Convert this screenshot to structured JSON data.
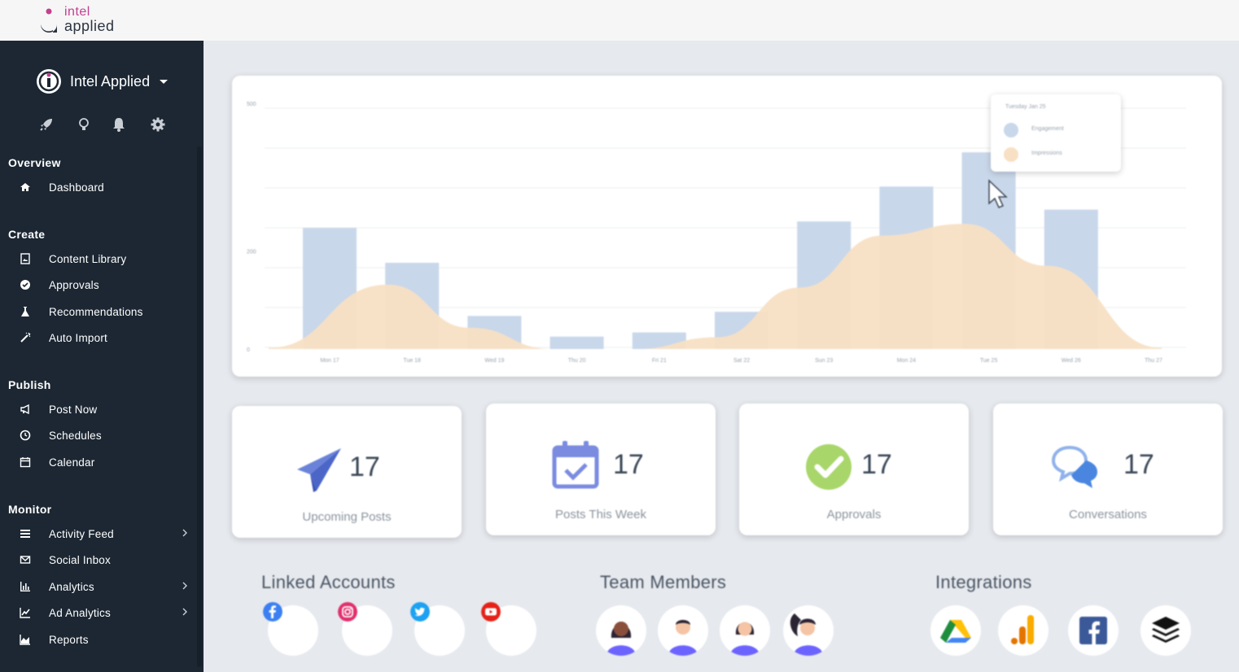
{
  "topbar": {
    "logo_line1": "intel",
    "logo_line2": "applied"
  },
  "sidebar": {
    "brand_name": "Intel Applied",
    "quick_icons": [
      "rocket-icon",
      "lightbulb-icon",
      "bell-icon",
      "gear-icon"
    ],
    "sections": [
      {
        "title": "Overview",
        "items": [
          {
            "label": "Dashboard",
            "icon": "home-icon"
          }
        ]
      },
      {
        "title": "Create",
        "items": [
          {
            "label": "Content Library",
            "icon": "image-file-icon"
          },
          {
            "label": "Approvals",
            "icon": "check-circle-icon"
          },
          {
            "label": "Recommendations",
            "icon": "flask-icon"
          },
          {
            "label": "Auto Import",
            "icon": "magic-wand-icon"
          }
        ]
      },
      {
        "title": "Publish",
        "items": [
          {
            "label": "Post Now",
            "icon": "megaphone-icon"
          },
          {
            "label": "Schedules",
            "icon": "clock-icon"
          },
          {
            "label": "Calendar",
            "icon": "calendar-icon"
          }
        ]
      },
      {
        "title": "Monitor",
        "items": [
          {
            "label": "Activity Feed",
            "icon": "list-icon",
            "chevron": true
          },
          {
            "label": "Social Inbox",
            "icon": "envelope-icon"
          },
          {
            "label": "Analytics",
            "icon": "bar-chart-icon",
            "chevron": true
          },
          {
            "label": "Ad Analytics",
            "icon": "line-chart-icon",
            "chevron": true
          },
          {
            "label": "Reports",
            "icon": "area-chart-icon"
          }
        ]
      }
    ]
  },
  "chart_data": {
    "type": "bar",
    "categories": [
      "Mon 17",
      "Tue 18",
      "Wed 19",
      "Thu 20",
      "Fri 21",
      "Sat 22",
      "Sun 23",
      "Mon 24",
      "Tue 25",
      "Wed 26",
      "Thu 27"
    ],
    "series": [
      {
        "name": "Engagement",
        "type": "bar",
        "values": [
          205,
          146,
          56,
          21,
          28,
          63,
          216,
          275,
          333,
          236,
          null
        ]
      },
      {
        "name": "Impressions",
        "type": "area",
        "values": [
          2,
          109,
          36,
          0,
          0,
          20,
          104,
          192,
          212,
          141,
          2
        ]
      }
    ],
    "y_ticks": [
      "500",
      "200",
      "0"
    ],
    "ylim": [
      0,
      416
    ],
    "colors": {
      "Engagement": "#c9d7ea",
      "Impressions": "#f8e0c4"
    },
    "grid": true,
    "tooltip": {
      "title": "Tuesday Jan 25",
      "items": [
        "Engagement",
        "Impressions"
      ]
    }
  },
  "stats": [
    {
      "value": "17",
      "label": "Upcoming Posts",
      "icon": "paper-plane-icon"
    },
    {
      "value": "17",
      "label": "Posts This Week",
      "icon": "calendar-check-icon"
    },
    {
      "value": "17",
      "label": "Approvals",
      "icon": "check-badge-icon"
    },
    {
      "value": "17",
      "label": "Conversations",
      "icon": "chat-bubbles-icon"
    }
  ],
  "linked_accounts": {
    "title": "Linked Accounts",
    "icons": [
      "facebook-icon",
      "instagram-icon",
      "twitter-icon",
      "youtube-icon"
    ]
  },
  "team_members": {
    "title": "Team Members",
    "count": 4
  },
  "integrations": {
    "title": "Integrations",
    "icons": [
      "google-drive-icon",
      "google-analytics-icon",
      "facebook-icon",
      "buffer-icon"
    ]
  }
}
